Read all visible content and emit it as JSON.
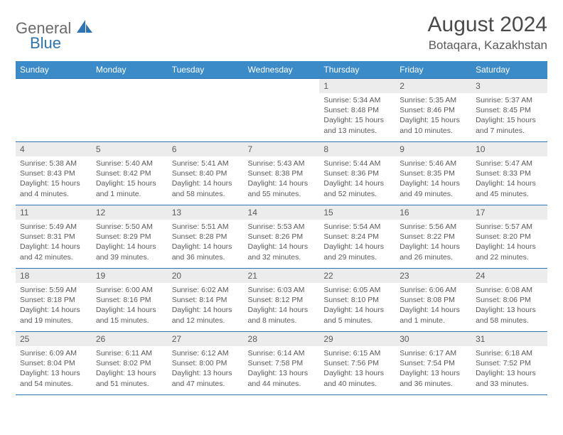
{
  "logo": {
    "part1": "General",
    "part2": "Blue"
  },
  "title": "August 2024",
  "location": "Botaqara, Kazakhstan",
  "colors": {
    "header_bg": "#3b8bc9",
    "header_text": "#ffffff",
    "border": "#2e74b5",
    "daynum_bg": "#ececec",
    "text": "#5a5a5a",
    "logo_blue": "#2e74b5"
  },
  "day_headers": [
    "Sunday",
    "Monday",
    "Tuesday",
    "Wednesday",
    "Thursday",
    "Friday",
    "Saturday"
  ],
  "weeks": [
    [
      {
        "num": "",
        "sunrise": "",
        "sunset": "",
        "daylight": ""
      },
      {
        "num": "",
        "sunrise": "",
        "sunset": "",
        "daylight": ""
      },
      {
        "num": "",
        "sunrise": "",
        "sunset": "",
        "daylight": ""
      },
      {
        "num": "",
        "sunrise": "",
        "sunset": "",
        "daylight": ""
      },
      {
        "num": "1",
        "sunrise": "Sunrise: 5:34 AM",
        "sunset": "Sunset: 8:48 PM",
        "daylight": "Daylight: 15 hours and 13 minutes."
      },
      {
        "num": "2",
        "sunrise": "Sunrise: 5:35 AM",
        "sunset": "Sunset: 8:46 PM",
        "daylight": "Daylight: 15 hours and 10 minutes."
      },
      {
        "num": "3",
        "sunrise": "Sunrise: 5:37 AM",
        "sunset": "Sunset: 8:45 PM",
        "daylight": "Daylight: 15 hours and 7 minutes."
      }
    ],
    [
      {
        "num": "4",
        "sunrise": "Sunrise: 5:38 AM",
        "sunset": "Sunset: 8:43 PM",
        "daylight": "Daylight: 15 hours and 4 minutes."
      },
      {
        "num": "5",
        "sunrise": "Sunrise: 5:40 AM",
        "sunset": "Sunset: 8:42 PM",
        "daylight": "Daylight: 15 hours and 1 minute."
      },
      {
        "num": "6",
        "sunrise": "Sunrise: 5:41 AM",
        "sunset": "Sunset: 8:40 PM",
        "daylight": "Daylight: 14 hours and 58 minutes."
      },
      {
        "num": "7",
        "sunrise": "Sunrise: 5:43 AM",
        "sunset": "Sunset: 8:38 PM",
        "daylight": "Daylight: 14 hours and 55 minutes."
      },
      {
        "num": "8",
        "sunrise": "Sunrise: 5:44 AM",
        "sunset": "Sunset: 8:36 PM",
        "daylight": "Daylight: 14 hours and 52 minutes."
      },
      {
        "num": "9",
        "sunrise": "Sunrise: 5:46 AM",
        "sunset": "Sunset: 8:35 PM",
        "daylight": "Daylight: 14 hours and 49 minutes."
      },
      {
        "num": "10",
        "sunrise": "Sunrise: 5:47 AM",
        "sunset": "Sunset: 8:33 PM",
        "daylight": "Daylight: 14 hours and 45 minutes."
      }
    ],
    [
      {
        "num": "11",
        "sunrise": "Sunrise: 5:49 AM",
        "sunset": "Sunset: 8:31 PM",
        "daylight": "Daylight: 14 hours and 42 minutes."
      },
      {
        "num": "12",
        "sunrise": "Sunrise: 5:50 AM",
        "sunset": "Sunset: 8:29 PM",
        "daylight": "Daylight: 14 hours and 39 minutes."
      },
      {
        "num": "13",
        "sunrise": "Sunrise: 5:51 AM",
        "sunset": "Sunset: 8:28 PM",
        "daylight": "Daylight: 14 hours and 36 minutes."
      },
      {
        "num": "14",
        "sunrise": "Sunrise: 5:53 AM",
        "sunset": "Sunset: 8:26 PM",
        "daylight": "Daylight: 14 hours and 32 minutes."
      },
      {
        "num": "15",
        "sunrise": "Sunrise: 5:54 AM",
        "sunset": "Sunset: 8:24 PM",
        "daylight": "Daylight: 14 hours and 29 minutes."
      },
      {
        "num": "16",
        "sunrise": "Sunrise: 5:56 AM",
        "sunset": "Sunset: 8:22 PM",
        "daylight": "Daylight: 14 hours and 26 minutes."
      },
      {
        "num": "17",
        "sunrise": "Sunrise: 5:57 AM",
        "sunset": "Sunset: 8:20 PM",
        "daylight": "Daylight: 14 hours and 22 minutes."
      }
    ],
    [
      {
        "num": "18",
        "sunrise": "Sunrise: 5:59 AM",
        "sunset": "Sunset: 8:18 PM",
        "daylight": "Daylight: 14 hours and 19 minutes."
      },
      {
        "num": "19",
        "sunrise": "Sunrise: 6:00 AM",
        "sunset": "Sunset: 8:16 PM",
        "daylight": "Daylight: 14 hours and 15 minutes."
      },
      {
        "num": "20",
        "sunrise": "Sunrise: 6:02 AM",
        "sunset": "Sunset: 8:14 PM",
        "daylight": "Daylight: 14 hours and 12 minutes."
      },
      {
        "num": "21",
        "sunrise": "Sunrise: 6:03 AM",
        "sunset": "Sunset: 8:12 PM",
        "daylight": "Daylight: 14 hours and 8 minutes."
      },
      {
        "num": "22",
        "sunrise": "Sunrise: 6:05 AM",
        "sunset": "Sunset: 8:10 PM",
        "daylight": "Daylight: 14 hours and 5 minutes."
      },
      {
        "num": "23",
        "sunrise": "Sunrise: 6:06 AM",
        "sunset": "Sunset: 8:08 PM",
        "daylight": "Daylight: 14 hours and 1 minute."
      },
      {
        "num": "24",
        "sunrise": "Sunrise: 6:08 AM",
        "sunset": "Sunset: 8:06 PM",
        "daylight": "Daylight: 13 hours and 58 minutes."
      }
    ],
    [
      {
        "num": "25",
        "sunrise": "Sunrise: 6:09 AM",
        "sunset": "Sunset: 8:04 PM",
        "daylight": "Daylight: 13 hours and 54 minutes."
      },
      {
        "num": "26",
        "sunrise": "Sunrise: 6:11 AM",
        "sunset": "Sunset: 8:02 PM",
        "daylight": "Daylight: 13 hours and 51 minutes."
      },
      {
        "num": "27",
        "sunrise": "Sunrise: 6:12 AM",
        "sunset": "Sunset: 8:00 PM",
        "daylight": "Daylight: 13 hours and 47 minutes."
      },
      {
        "num": "28",
        "sunrise": "Sunrise: 6:14 AM",
        "sunset": "Sunset: 7:58 PM",
        "daylight": "Daylight: 13 hours and 44 minutes."
      },
      {
        "num": "29",
        "sunrise": "Sunrise: 6:15 AM",
        "sunset": "Sunset: 7:56 PM",
        "daylight": "Daylight: 13 hours and 40 minutes."
      },
      {
        "num": "30",
        "sunrise": "Sunrise: 6:17 AM",
        "sunset": "Sunset: 7:54 PM",
        "daylight": "Daylight: 13 hours and 36 minutes."
      },
      {
        "num": "31",
        "sunrise": "Sunrise: 6:18 AM",
        "sunset": "Sunset: 7:52 PM",
        "daylight": "Daylight: 13 hours and 33 minutes."
      }
    ]
  ]
}
